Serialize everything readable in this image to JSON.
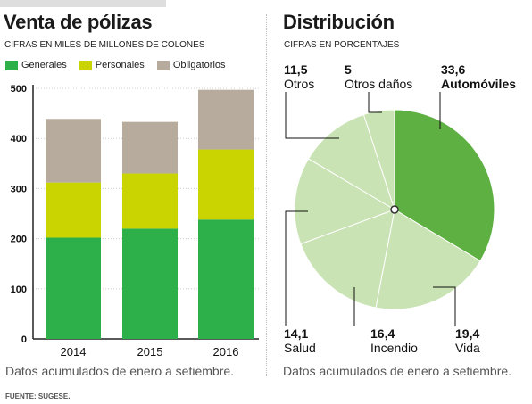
{
  "left": {
    "title": "Venta de pólizas",
    "subtitle": "CIFRAS EN MILES DE MILLONES DE COLONES",
    "note": "Datos acumulados de enero a setiembre."
  },
  "right": {
    "title": "Distribución",
    "subtitle": "CIFRAS EN PORCENTAJES",
    "note": "Datos acumulados de enero a setiembre."
  },
  "source": "FUENTE: SUGESE.",
  "colors": {
    "generales": "#2db04a",
    "personales": "#c9d400",
    "obligatorios": "#b6ab9d",
    "pie_highlight": "#5fb043",
    "pie_light": "#c9e3b4"
  },
  "chart_data": [
    {
      "type": "bar",
      "stacked": true,
      "categories": [
        "2014",
        "2015",
        "2016"
      ],
      "series": [
        {
          "name": "Generales",
          "values": [
            202,
            220,
            238
          ]
        },
        {
          "name": "Personales",
          "values": [
            110,
            110,
            140
          ]
        },
        {
          "name": "Obligatorios",
          "values": [
            127,
            103,
            119
          ]
        }
      ],
      "yticks": [
        0,
        100,
        200,
        300,
        400,
        500
      ],
      "ylim": [
        0,
        500
      ],
      "grid": true,
      "legend": "top-left"
    },
    {
      "type": "pie",
      "slices": [
        {
          "value": "33,6",
          "label": "Automóviles",
          "highlight": true
        },
        {
          "value": "19,4",
          "label": "Vida"
        },
        {
          "value": "16,4",
          "label": "Incendio"
        },
        {
          "value": "14,1",
          "label": "Salud"
        },
        {
          "value": "11,5",
          "label": "Otros"
        },
        {
          "value": "5",
          "label": "Otros daños"
        }
      ]
    }
  ]
}
